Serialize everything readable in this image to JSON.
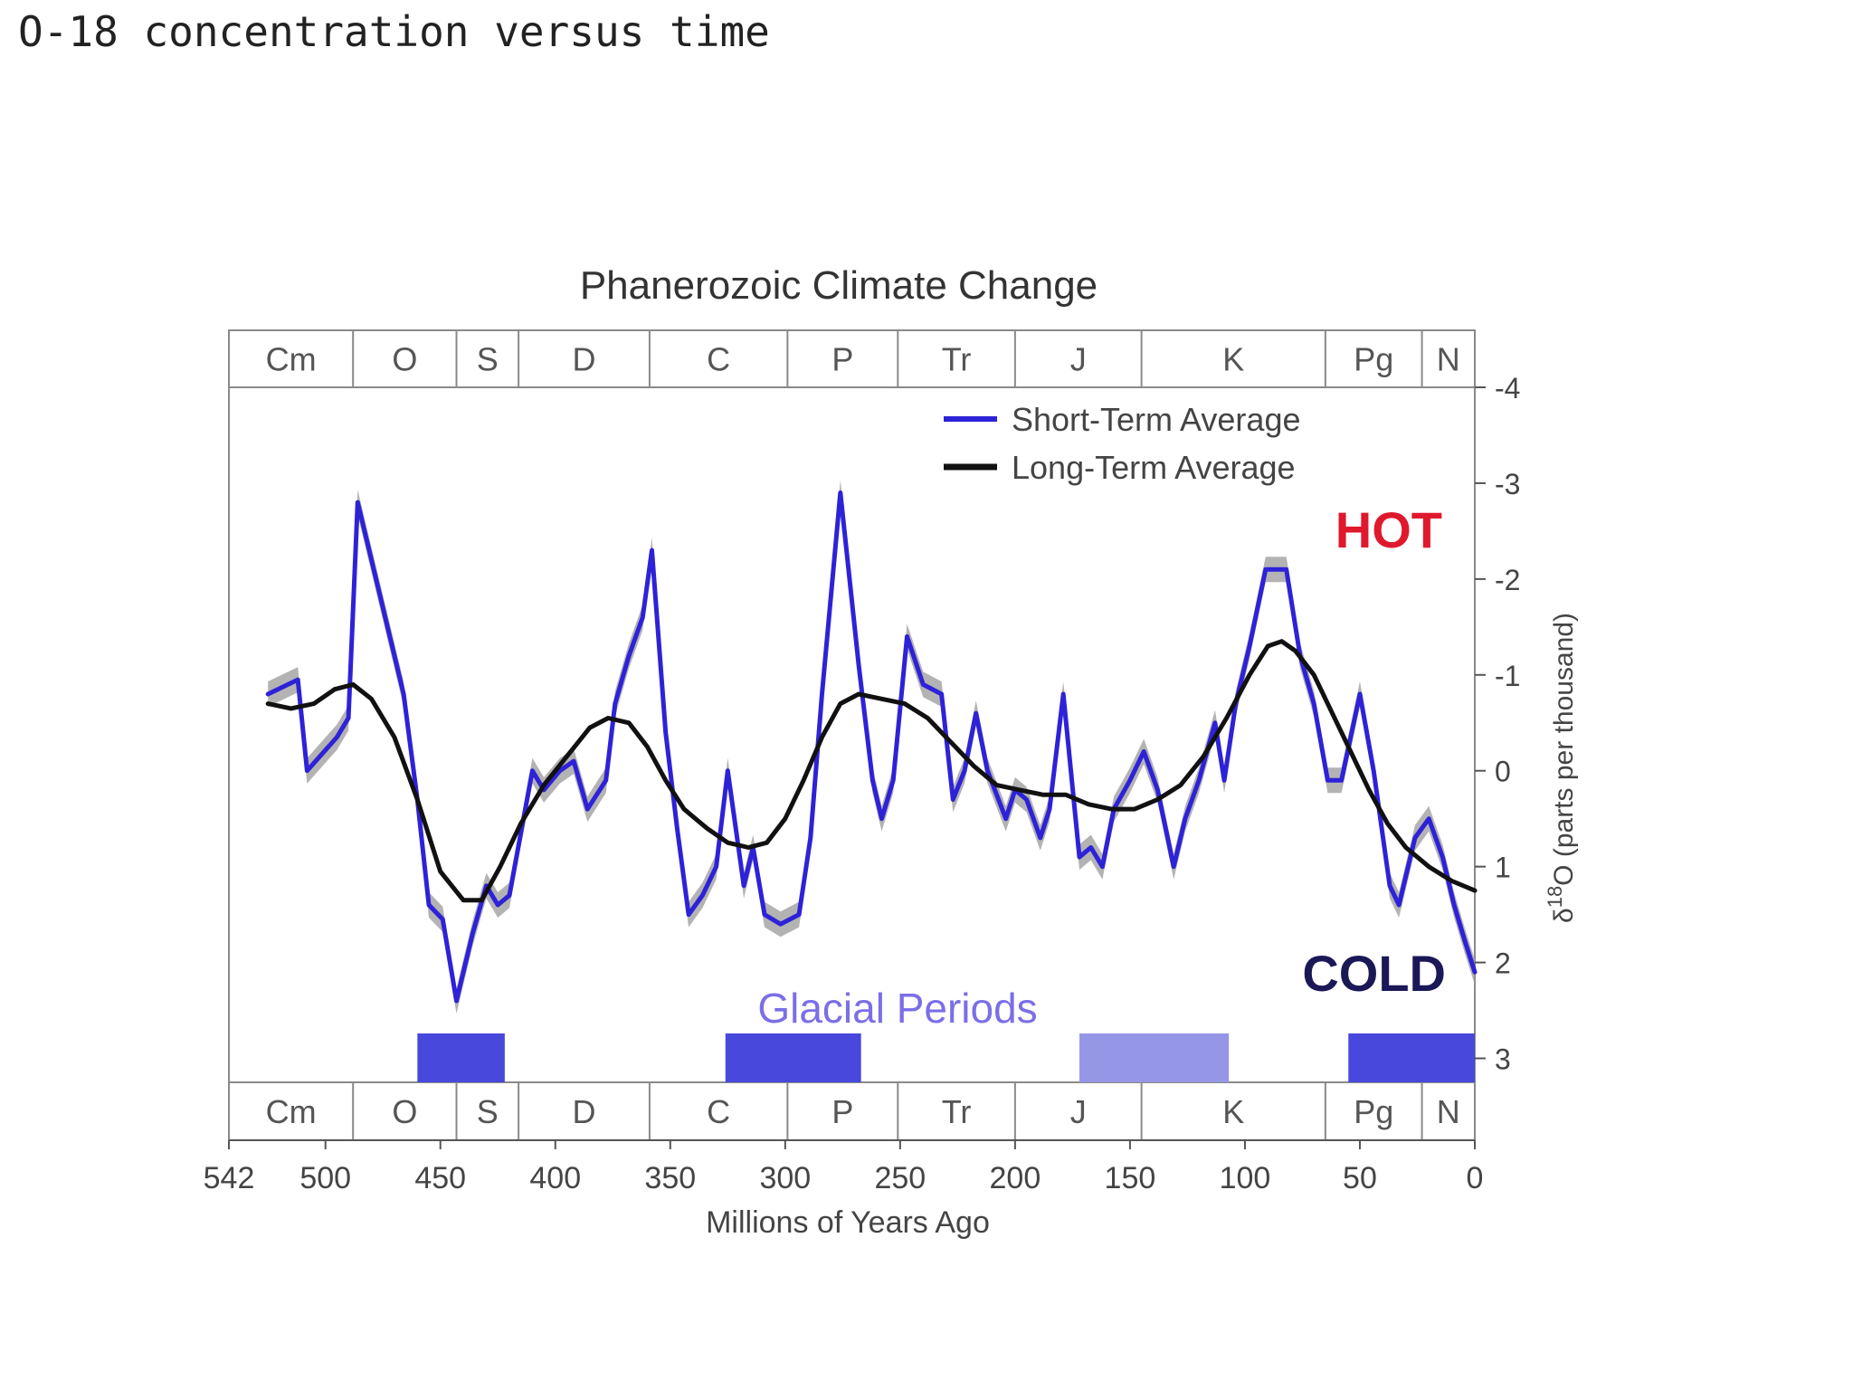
{
  "caption": "O-18 concentration versus time",
  "chart_data": {
    "type": "line",
    "title": "Phanerozoic Climate Change",
    "xlabel": "Millions of Years Ago",
    "ylabel_prefix": "δ",
    "ylabel_sup": "18",
    "ylabel_suffix": "O (parts per thousand)",
    "xlim": [
      542,
      0
    ],
    "ylim": [
      -4,
      3.25
    ],
    "y_inverted": true,
    "grid": false,
    "legend_position": "top-right",
    "x_ticks": [
      542,
      500,
      450,
      400,
      350,
      300,
      250,
      200,
      150,
      100,
      50,
      0
    ],
    "y_ticks": [
      -4,
      -3,
      -2,
      -1,
      0,
      1,
      2,
      3
    ],
    "annotations": {
      "hot": "HOT",
      "cold": "COLD",
      "glacial": "Glacial Periods"
    },
    "periods": [
      {
        "label": "Cm",
        "start": 542,
        "end": 488
      },
      {
        "label": "O",
        "start": 488,
        "end": 443
      },
      {
        "label": "S",
        "start": 443,
        "end": 416
      },
      {
        "label": "D",
        "start": 416,
        "end": 359
      },
      {
        "label": "C",
        "start": 359,
        "end": 299
      },
      {
        "label": "P",
        "start": 299,
        "end": 251
      },
      {
        "label": "Tr",
        "start": 251,
        "end": 200
      },
      {
        "label": "J",
        "start": 200,
        "end": 145
      },
      {
        "label": "K",
        "start": 145,
        "end": 65
      },
      {
        "label": "Pg",
        "start": 65,
        "end": 23
      },
      {
        "label": "N",
        "start": 23,
        "end": 0
      }
    ],
    "glacial_periods": [
      {
        "start": 460,
        "end": 422,
        "color": "#4848dc"
      },
      {
        "start": 326,
        "end": 267,
        "color": "#4848dc"
      },
      {
        "start": 172,
        "end": 107,
        "color": "#9696e6"
      },
      {
        "start": 55,
        "end": 0,
        "color": "#4848dc"
      }
    ],
    "series": [
      {
        "name": "Short-Term Average",
        "color": "#2e22d8",
        "points": [
          [
            525,
            -0.8
          ],
          [
            512,
            -0.95
          ],
          [
            508,
            0
          ],
          [
            495,
            -0.35
          ],
          [
            490,
            -0.55
          ],
          [
            486,
            -2.8
          ],
          [
            476,
            -1.8
          ],
          [
            466,
            -0.8
          ],
          [
            460,
            0.3
          ],
          [
            455,
            1.4
          ],
          [
            449,
            1.55
          ],
          [
            443,
            2.4
          ],
          [
            436,
            1.7
          ],
          [
            430,
            1.2
          ],
          [
            425,
            1.4
          ],
          [
            420,
            1.3
          ],
          [
            410,
            0
          ],
          [
            405,
            0.2
          ],
          [
            398,
            0
          ],
          [
            392,
            -0.1
          ],
          [
            386,
            0.4
          ],
          [
            378,
            0.1
          ],
          [
            374,
            -0.7
          ],
          [
            368,
            -1.2
          ],
          [
            362,
            -1.6
          ],
          [
            358,
            -2.3
          ],
          [
            352,
            -0.4
          ],
          [
            347,
            0.6
          ],
          [
            342,
            1.5
          ],
          [
            336,
            1.3
          ],
          [
            330,
            1.0
          ],
          [
            325,
            0
          ],
          [
            318,
            1.2
          ],
          [
            314,
            0.8
          ],
          [
            309,
            1.5
          ],
          [
            302,
            1.6
          ],
          [
            294,
            1.5
          ],
          [
            289,
            0.7
          ],
          [
            284,
            -0.8
          ],
          [
            276,
            -2.9
          ],
          [
            268,
            -1.1
          ],
          [
            262,
            0.1
          ],
          [
            258,
            0.5
          ],
          [
            253,
            0.1
          ],
          [
            247,
            -1.4
          ],
          [
            240,
            -0.9
          ],
          [
            232,
            -0.8
          ],
          [
            227,
            0.3
          ],
          [
            222,
            0
          ],
          [
            217,
            -0.6
          ],
          [
            212,
            0
          ],
          [
            204,
            0.5
          ],
          [
            200,
            0.2
          ],
          [
            195,
            0.3
          ],
          [
            189,
            0.7
          ],
          [
            185,
            0.4
          ],
          [
            179,
            -0.8
          ],
          [
            172,
            0.9
          ],
          [
            167,
            0.8
          ],
          [
            162,
            1.0
          ],
          [
            157,
            0.4
          ],
          [
            150,
            0.1
          ],
          [
            144,
            -0.2
          ],
          [
            138,
            0.2
          ],
          [
            131,
            1.0
          ],
          [
            126,
            0.5
          ],
          [
            120,
            0.1
          ],
          [
            113,
            -0.5
          ],
          [
            109,
            0.1
          ],
          [
            104,
            -0.7
          ],
          [
            98,
            -1.3
          ],
          [
            91,
            -2.1
          ],
          [
            82,
            -2.1
          ],
          [
            76,
            -1.2
          ],
          [
            70,
            -0.7
          ],
          [
            64,
            0.1
          ],
          [
            58,
            0.1
          ],
          [
            50,
            -0.8
          ],
          [
            44,
            0
          ],
          [
            37,
            1.2
          ],
          [
            33,
            1.4
          ],
          [
            26,
            0.7
          ],
          [
            20,
            0.5
          ],
          [
            14,
            0.9
          ],
          [
            9,
            1.4
          ],
          [
            4,
            1.8
          ],
          [
            0,
            2.1
          ]
        ]
      },
      {
        "name": "Long-Term Average",
        "color": "#111111",
        "points": [
          [
            525,
            -0.7
          ],
          [
            515,
            -0.65
          ],
          [
            505,
            -0.7
          ],
          [
            496,
            -0.85
          ],
          [
            488,
            -0.9
          ],
          [
            480,
            -0.75
          ],
          [
            470,
            -0.35
          ],
          [
            460,
            0.3
          ],
          [
            450,
            1.05
          ],
          [
            440,
            1.35
          ],
          [
            432,
            1.35
          ],
          [
            424,
            1.0
          ],
          [
            415,
            0.55
          ],
          [
            405,
            0.15
          ],
          [
            395,
            -0.15
          ],
          [
            385,
            -0.45
          ],
          [
            377,
            -0.55
          ],
          [
            368,
            -0.5
          ],
          [
            360,
            -0.25
          ],
          [
            352,
            0.1
          ],
          [
            344,
            0.4
          ],
          [
            334,
            0.6
          ],
          [
            325,
            0.75
          ],
          [
            316,
            0.8
          ],
          [
            308,
            0.75
          ],
          [
            300,
            0.5
          ],
          [
            292,
            0.1
          ],
          [
            284,
            -0.35
          ],
          [
            276,
            -0.7
          ],
          [
            268,
            -0.8
          ],
          [
            258,
            -0.75
          ],
          [
            248,
            -0.7
          ],
          [
            238,
            -0.55
          ],
          [
            228,
            -0.3
          ],
          [
            218,
            -0.05
          ],
          [
            208,
            0.15
          ],
          [
            198,
            0.2
          ],
          [
            188,
            0.25
          ],
          [
            178,
            0.25
          ],
          [
            168,
            0.35
          ],
          [
            158,
            0.4
          ],
          [
            148,
            0.4
          ],
          [
            138,
            0.3
          ],
          [
            128,
            0.15
          ],
          [
            118,
            -0.15
          ],
          [
            108,
            -0.55
          ],
          [
            98,
            -1.0
          ],
          [
            90,
            -1.3
          ],
          [
            84,
            -1.35
          ],
          [
            78,
            -1.25
          ],
          [
            70,
            -1.0
          ],
          [
            62,
            -0.6
          ],
          [
            54,
            -0.2
          ],
          [
            46,
            0.2
          ],
          [
            38,
            0.55
          ],
          [
            30,
            0.8
          ],
          [
            20,
            1.0
          ],
          [
            10,
            1.15
          ],
          [
            0,
            1.25
          ]
        ]
      }
    ],
    "colors": {
      "short_term": "#2e22d8",
      "long_term": "#111111",
      "uncertainty": "#9a9a9a",
      "hot": "#e0182d",
      "cold": "#1a1856",
      "glacial_text": "#7a6fe6"
    }
  }
}
